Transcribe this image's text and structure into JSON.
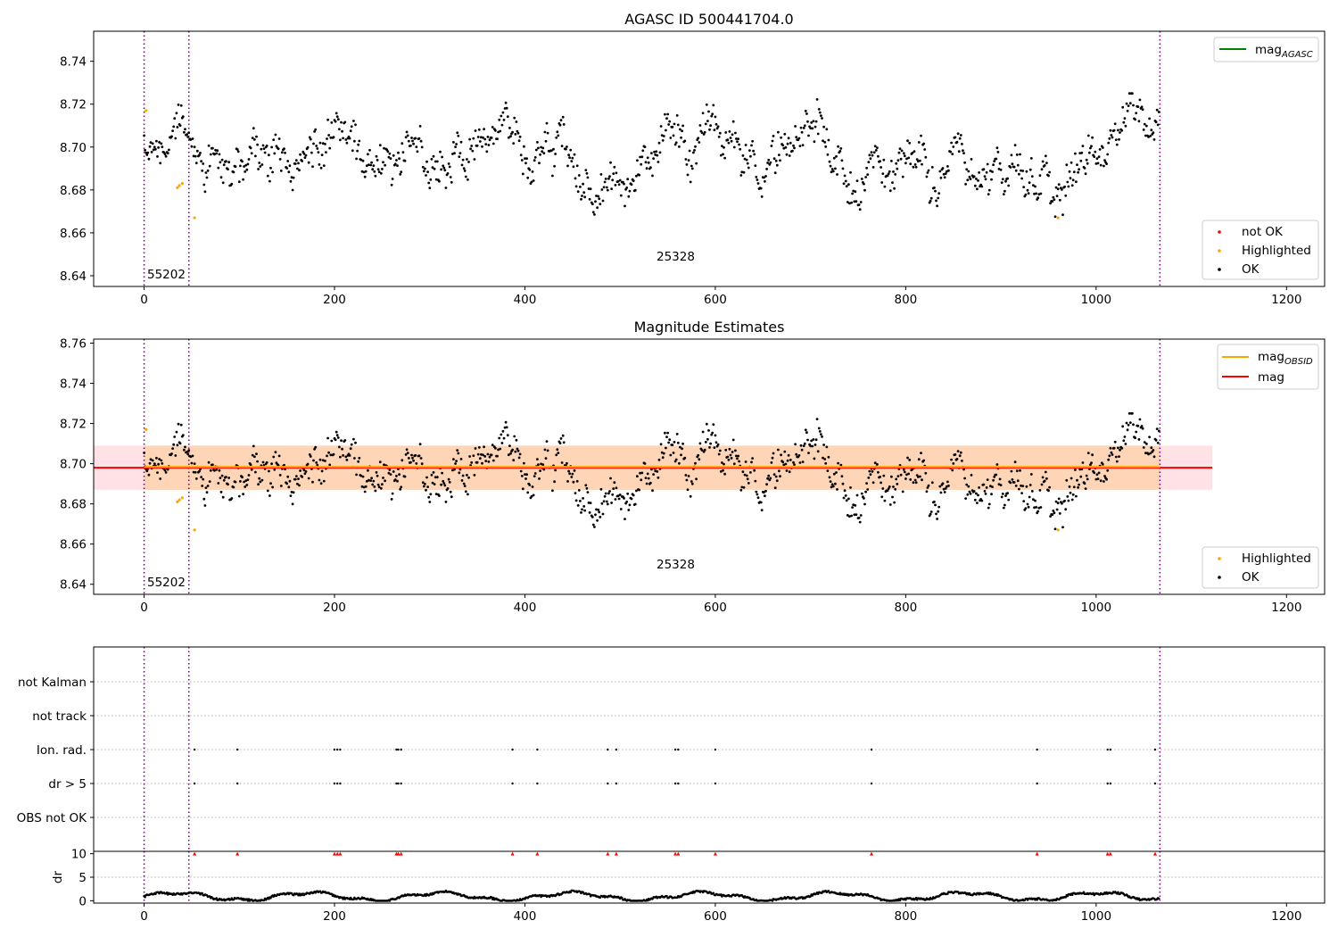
{
  "chart_data": [
    {
      "type": "scatter",
      "panel": "top",
      "title": "AGASC ID 500441704.0",
      "xlim": [
        -53,
        1240
      ],
      "ylim": [
        8.635,
        8.754
      ],
      "xticks": [
        0,
        200,
        400,
        600,
        800,
        1000,
        1200
      ],
      "yticks": [
        8.64,
        8.66,
        8.68,
        8.7,
        8.72,
        8.74
      ],
      "ytick_labels": [
        "8.64",
        "8.66",
        "8.68",
        "8.70",
        "8.72",
        "8.74"
      ],
      "obs_boundaries": [
        0,
        47,
        1067
      ],
      "obs_labels": [
        {
          "x": 2,
          "label": "55202"
        },
        {
          "x": 537,
          "label": "25328"
        }
      ],
      "legend_lines": [
        {
          "label": "mag",
          "sub": "AGASC",
          "color": "#008000"
        }
      ],
      "legend_points": [
        {
          "label": "not OK",
          "color": "#ff0000"
        },
        {
          "label": "Highlighted",
          "color": "#ffa500"
        },
        {
          "label": "OK",
          "color": "#000000"
        }
      ],
      "highlighted_points": [
        [
          2,
          8.717
        ],
        [
          35,
          8.681
        ],
        [
          37,
          8.682
        ],
        [
          40,
          8.683
        ],
        [
          53,
          8.667
        ],
        [
          960,
          8.667
        ]
      ],
      "series_generator": {
        "n": 1067,
        "mean": 8.698,
        "seed": 17
      }
    },
    {
      "type": "scatter",
      "panel": "middle",
      "title": "Magnitude Estimates",
      "xlim": [
        -53,
        1240
      ],
      "ylim": [
        8.635,
        8.762
      ],
      "xticks": [
        0,
        200,
        400,
        600,
        800,
        1000,
        1200
      ],
      "yticks": [
        8.64,
        8.66,
        8.68,
        8.7,
        8.72,
        8.74,
        8.76
      ],
      "ytick_labels": [
        "8.64",
        "8.66",
        "8.68",
        "8.70",
        "8.72",
        "8.74",
        "8.76"
      ],
      "obs_boundaries": [
        0,
        47,
        1067
      ],
      "obs_labels": [
        {
          "x": 2,
          "label": "55202"
        },
        {
          "x": 537,
          "label": "25328"
        }
      ],
      "legend_lines": [
        {
          "label": "mag",
          "sub": "OBSID",
          "color": "#ffa500"
        },
        {
          "label": "mag",
          "sub": "",
          "color": "#ff0000"
        }
      ],
      "legend_points": [
        {
          "label": "Highlighted",
          "color": "#ffa500"
        },
        {
          "label": "OK",
          "color": "#000000"
        }
      ],
      "mag_value": 8.698,
      "mag_band": [
        8.687,
        8.709
      ],
      "mag_band_x": [
        -53,
        1122
      ],
      "mag_obsid": 8.698,
      "highlighted_points": [
        [
          2,
          8.717
        ],
        [
          35,
          8.681
        ],
        [
          37,
          8.682
        ],
        [
          40,
          8.683
        ],
        [
          53,
          8.667
        ],
        [
          960,
          8.667
        ]
      ]
    },
    {
      "type": "scatter",
      "panel": "flags",
      "xlim": [
        -53,
        1240
      ],
      "categories": [
        "not Kalman",
        "not track",
        "Ion. rad.",
        "dr > 5",
        "OBS not OK"
      ],
      "flag_x": [
        53,
        98,
        200,
        203,
        206,
        265,
        267,
        270,
        387,
        413,
        487,
        496,
        558,
        561,
        600,
        764,
        938,
        1012,
        1015,
        1062
      ],
      "flag_rows": [
        "Ion. rad.",
        "dr > 5"
      ],
      "obs_boundaries": [
        0,
        47,
        1067
      ]
    },
    {
      "type": "line",
      "panel": "dr",
      "ylabel": "dr",
      "xlim": [
        -53,
        1240
      ],
      "ylim": [
        -0.5,
        10.5
      ],
      "yticks": [
        0,
        5,
        10
      ],
      "ytick_labels": [
        "0",
        "5",
        "10"
      ],
      "xticks": [
        0,
        200,
        400,
        600,
        800,
        1000,
        1200
      ],
      "clipped_value": 10,
      "clipped_x": [
        53,
        98,
        200,
        203,
        206,
        265,
        267,
        270,
        387,
        413,
        487,
        496,
        558,
        561,
        600,
        764,
        938,
        1012,
        1015,
        1062
      ],
      "obs_boundaries": [
        0,
        47,
        1067
      ]
    }
  ]
}
